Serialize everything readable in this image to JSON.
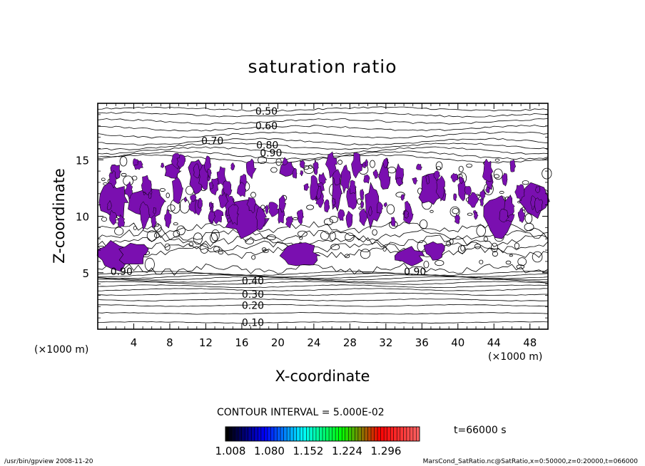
{
  "chart_data": {
    "type": "contour",
    "title": "saturation ratio",
    "xlabel": "X-coordinate",
    "ylabel": "Z-coordinate",
    "x_unit": "(×1000 m)",
    "y_unit": "(×1000 m)",
    "xlim": [
      0,
      50
    ],
    "ylim": [
      0,
      20
    ],
    "x_ticks": [
      4,
      8,
      12,
      16,
      20,
      24,
      28,
      32,
      36,
      40,
      44,
      48
    ],
    "y_ticks": [
      5,
      10,
      15
    ],
    "contour_interval_text": "CONTOUR INTERVAL = 5.000E-02",
    "time_text": "t=66000 s",
    "fill_color": "#7a0fb0",
    "contour_labels": [
      {
        "text": "0.50",
        "x": 17.5,
        "z": 19.3
      },
      {
        "text": "0.60",
        "x": 17.5,
        "z": 18.0
      },
      {
        "text": "0.70",
        "x": 11.5,
        "z": 16.7
      },
      {
        "text": "0.80",
        "x": 17.6,
        "z": 16.3
      },
      {
        "text": "0.90",
        "x": 18.0,
        "z": 15.6
      },
      {
        "text": "0.90",
        "x": 1.4,
        "z": 5.1
      },
      {
        "text": "0.90",
        "x": 34.0,
        "z": 5.1
      },
      {
        "text": "0.40",
        "x": 16.0,
        "z": 4.3
      },
      {
        "text": "0.30",
        "x": 16.0,
        "z": 3.1
      },
      {
        "text": "0.20",
        "x": 16.0,
        "z": 2.1
      },
      {
        "text": "0.10",
        "x": 16.0,
        "z": 0.6
      }
    ],
    "colorbar": {
      "tick_labels": [
        "1.008",
        "1.080",
        "1.152",
        "1.224",
        "1.296"
      ],
      "colors": [
        "#000000",
        "#0000ff",
        "#00ffff",
        "#00ff00",
        "#ff0000",
        "#ff6060"
      ]
    }
  },
  "footer": {
    "left": "/usr/bin/gpview   2008-11-20",
    "right": "MarsCond_SatRatio.nc@SatRatio,x=0:50000,z=0:20000,t=066000"
  }
}
